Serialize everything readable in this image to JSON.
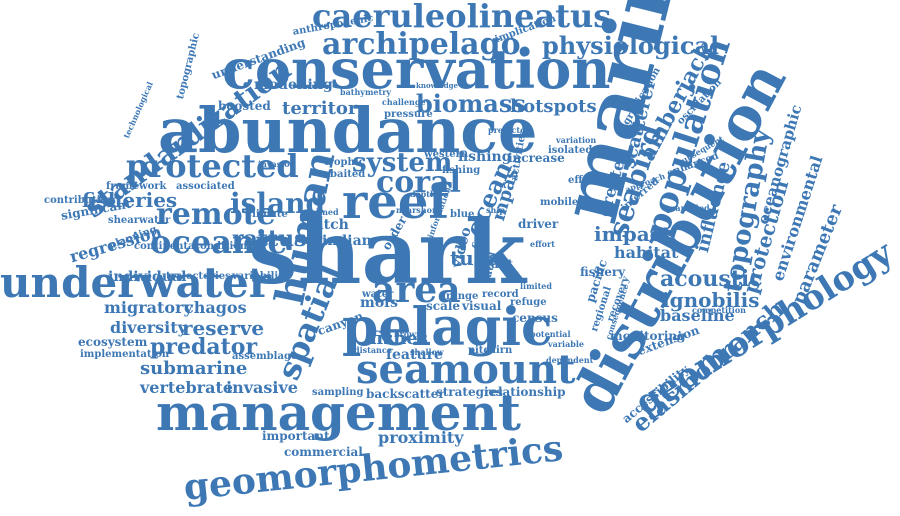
{
  "cloud": {
    "color": "#3d78b5",
    "words": [
      "shark",
      "marine",
      "abundance",
      "conservation",
      "distribution",
      "management",
      "reef",
      "pelagic",
      "seamount",
      "human",
      "underwater",
      "geomorphometrics",
      "geomorphology",
      "caeruleolineatus",
      "archipelago",
      "physiological",
      "population",
      "spatial",
      "coral",
      "area",
      "protected",
      "standardization",
      "remote",
      "oceanic",
      "island",
      "fisheries",
      "elasmobranch",
      "seabird",
      "amberjack",
      "topography",
      "protection",
      "influence",
      "acoustic",
      "ignobilis",
      "parameter",
      "environmental",
      "oceanographic",
      "tuna",
      "impact",
      "habitat",
      "greater",
      "scatterer",
      "ocean",
      "mpas",
      "system",
      "biomass",
      "hotspots",
      "territory",
      "modelling",
      "understanding",
      "anthropogenic",
      "bathymetry",
      "implication",
      "knowledge",
      "challenge",
      "predator",
      "reserve",
      "diversity",
      "migratory",
      "chagos",
      "regression",
      "significant",
      "contribution",
      "submarine",
      "vertebrate",
      "invasive",
      "backscatter",
      "strategies",
      "relationship",
      "proximity",
      "important",
      "commercial",
      "accessibility",
      "rattus",
      "indian",
      "trophic",
      "baited",
      "fishing",
      "video",
      "fish",
      "giant",
      "fishes",
      "mofs",
      "water",
      "range",
      "record",
      "refuge",
      "scale",
      "visual",
      "feature",
      "canyon",
      "sampling",
      "distance",
      "shallow",
      "pitcairn",
      "census",
      "baseline",
      "monitoring",
      "extension",
      "gradication",
      "oscillation",
      "individual",
      "trajectories",
      "variability",
      "continental",
      "condition",
      "planning",
      "framework",
      "associated",
      "shearwater",
      "climate",
      "boosted",
      "topographic",
      "technological",
      "ecosystem",
      "implementation",
      "assemblage",
      "catch",
      "lined",
      "variable",
      "dependent",
      "regional",
      "consequence",
      "competition",
      "effective",
      "isolated",
      "increase",
      "mobile",
      "fishery",
      "driver",
      "effort",
      "atoll",
      "western",
      "pressure",
      "predictor",
      "variation",
      "quantified",
      "subsequent",
      "approach",
      "enhanced",
      "recovery",
      "inferred",
      "pacific",
      "limited",
      "potential",
      "brown",
      "invasion",
      "fishing",
      "blue",
      "ship",
      "activities",
      "order",
      "information",
      "nearshore",
      "depth",
      "valuable"
    ]
  }
}
